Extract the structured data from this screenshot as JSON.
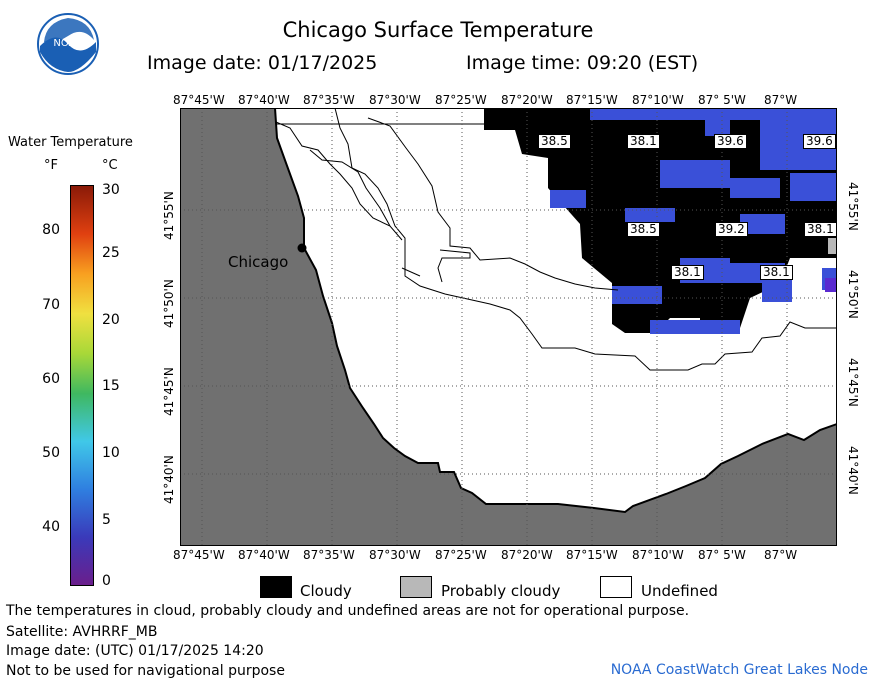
{
  "title": "Chicago Surface Temperature",
  "image_date_label": "Image date: 01/17/2025",
  "image_time_label": "Image time: 09:20 (EST)",
  "logo_text": "NOAA",
  "colorbar": {
    "title": "Water Temperature",
    "unit_f": "°F",
    "unit_c": "°C",
    "f_ticks": [
      "80",
      "70",
      "60",
      "50",
      "40"
    ],
    "c_ticks": [
      "30",
      "25",
      "20",
      "15",
      "10",
      "5",
      "0"
    ]
  },
  "lon_labels": [
    "87°45'W",
    "87°40'W",
    "87°35'W",
    "87°30'W",
    "87°25'W",
    "87°20'W",
    "87°15'W",
    "87°10'W",
    "87° 5'W",
    "87°W"
  ],
  "lat_labels": [
    "41°55'N",
    "41°50'N",
    "41°45'N",
    "41°40'N"
  ],
  "city": "Chicago",
  "map_values": [
    "38.5",
    "38.1",
    "39.6",
    "39.6",
    "38.5",
    "39.2",
    "38.1",
    "38.1",
    "38.1"
  ],
  "legend": {
    "cloudy": "Cloudy",
    "probably_cloudy": "Probably cloudy",
    "undefined": "Undefined"
  },
  "colors": {
    "land": "#707070",
    "cloud": "#000000",
    "probably_cloud": "#b8b8b8",
    "water_cold": "#3a50d8",
    "water_colder": "#5a2ad0"
  },
  "footer": {
    "note": "The temperatures in cloud, probably cloudy and undefined areas are not for operational purpose.",
    "satellite": "Satellite: AVHRRF_MB",
    "utc_date": "Image date: (UTC) 01/17/2025  14:20",
    "nav_warning": "Not to be used for navigational purpose",
    "credit": "NOAA CoastWatch Great Lakes Node"
  }
}
